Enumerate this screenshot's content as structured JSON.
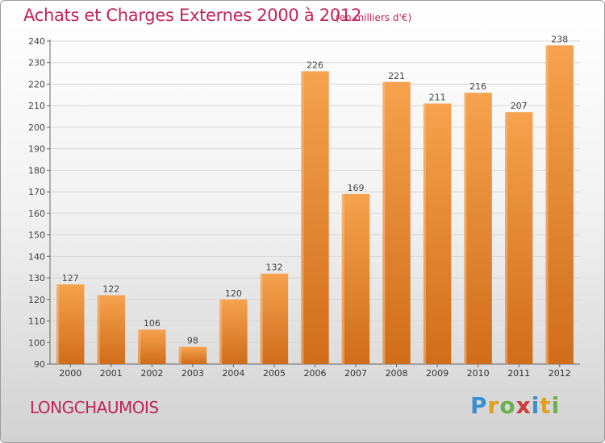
{
  "title": "Achats et Charges Externes 2000 à 2012",
  "subtitle": "(en milliers d'€)",
  "place": "LONGCHAUMOIS",
  "logo": {
    "p": "P",
    "r": "r",
    "o": "o",
    "x": "x",
    "i1": "i",
    "t": "t",
    "i2": "i"
  },
  "colors": {
    "title": "#c0245a",
    "bar_light": "#f6a24e",
    "bar_dark": "#d06d1a",
    "grid": "#d8d8d8"
  },
  "chart_data": {
    "type": "bar",
    "categories": [
      "2000",
      "2001",
      "2002",
      "2003",
      "2004",
      "2005",
      "2006",
      "2007",
      "2008",
      "2009",
      "2010",
      "2011",
      "2012"
    ],
    "values": [
      127,
      122,
      106,
      98,
      120,
      132,
      226,
      169,
      221,
      211,
      216,
      207,
      238
    ],
    "title": "Achats et Charges Externes 2000 à 2012",
    "subtitle": "(en milliers d'€)",
    "xlabel": "",
    "ylabel": "",
    "ylim": [
      90,
      240
    ],
    "yticks": [
      90,
      100,
      110,
      120,
      130,
      140,
      150,
      160,
      170,
      180,
      190,
      200,
      210,
      220,
      230,
      240
    ],
    "grid": true,
    "data_labels": true
  }
}
